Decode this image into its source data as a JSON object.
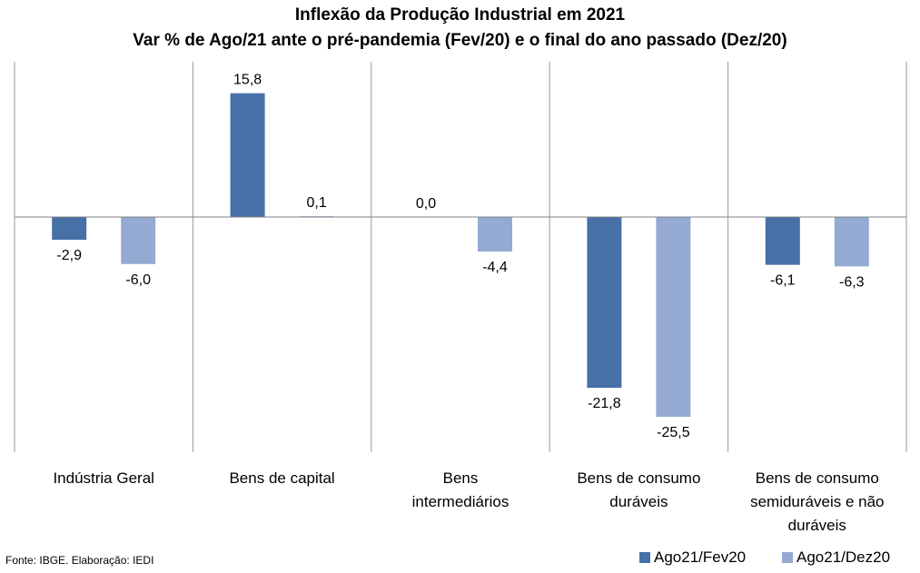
{
  "chart_data": {
    "type": "bar",
    "title": "Inflexão da Produção Industrial em 2021",
    "subtitle": "Var % de Ago/21 ante o pré-pandemia (Fev/20) e o final do ano passado (Dez/20)",
    "categories": [
      [
        "Indústria Geral"
      ],
      [
        "Bens de capital"
      ],
      [
        "Bens",
        "intermediários"
      ],
      [
        "Bens de consumo",
        "duráveis"
      ],
      [
        "Bens de consumo",
        "semiduráveis e não",
        "duráveis"
      ]
    ],
    "series": [
      {
        "name": "Ago21/Fev20",
        "color": "#4671a6",
        "values": [
          -2.9,
          15.8,
          0.0,
          -21.8,
          -6.1
        ],
        "labels": [
          "-2,9",
          "15,8",
          "0,0",
          "-21,8",
          "-6,1"
        ]
      },
      {
        "name": "Ago21/Dez20",
        "color": "#94aad3",
        "values": [
          -6.0,
          0.1,
          -4.4,
          -25.5,
          -6.3
        ],
        "labels": [
          "-6,0",
          "0,1",
          "-4,4",
          "-25,5",
          "-6,3"
        ]
      }
    ],
    "ylim": [
      -30,
      20
    ],
    "grid": false,
    "legend": "bottom-right"
  },
  "source": "Fonte: IBGE. Elaboração: IEDI"
}
